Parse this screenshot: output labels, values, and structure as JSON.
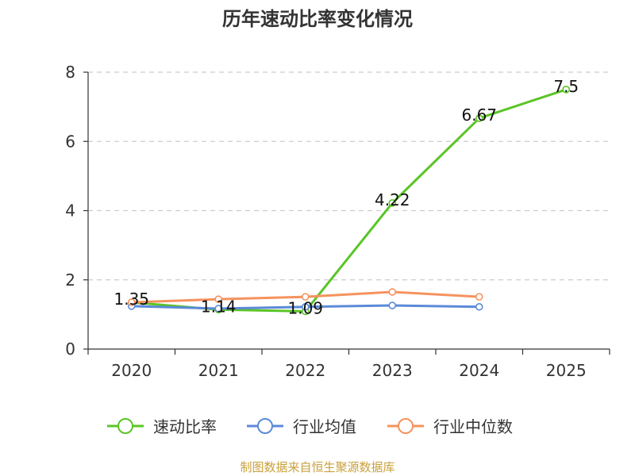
{
  "chart_data": {
    "type": "line",
    "title": "历年速动比率变化情况",
    "categories": [
      "2020",
      "2021",
      "2022",
      "2023",
      "2024",
      "2025"
    ],
    "ylim": [
      0,
      8
    ],
    "yticks": [
      0,
      2,
      4,
      6,
      8
    ],
    "grid": true,
    "legend_position": "bottom",
    "series": [
      {
        "name": "速动比率",
        "color": "#5bc426",
        "show_labels": true,
        "values": [
          1.35,
          1.14,
          1.09,
          4.22,
          6.67,
          7.5
        ]
      },
      {
        "name": "行业均值",
        "color": "#5b8ad8",
        "show_labels": false,
        "values": [
          1.24,
          1.17,
          1.22,
          1.26,
          1.22,
          null
        ]
      },
      {
        "name": "行业中位数",
        "color": "#f5925e",
        "show_labels": false,
        "values": [
          1.35,
          1.44,
          1.51,
          1.65,
          1.51,
          null
        ]
      }
    ]
  },
  "footer": {
    "source": "制图数据来自恒生聚源数据库"
  }
}
